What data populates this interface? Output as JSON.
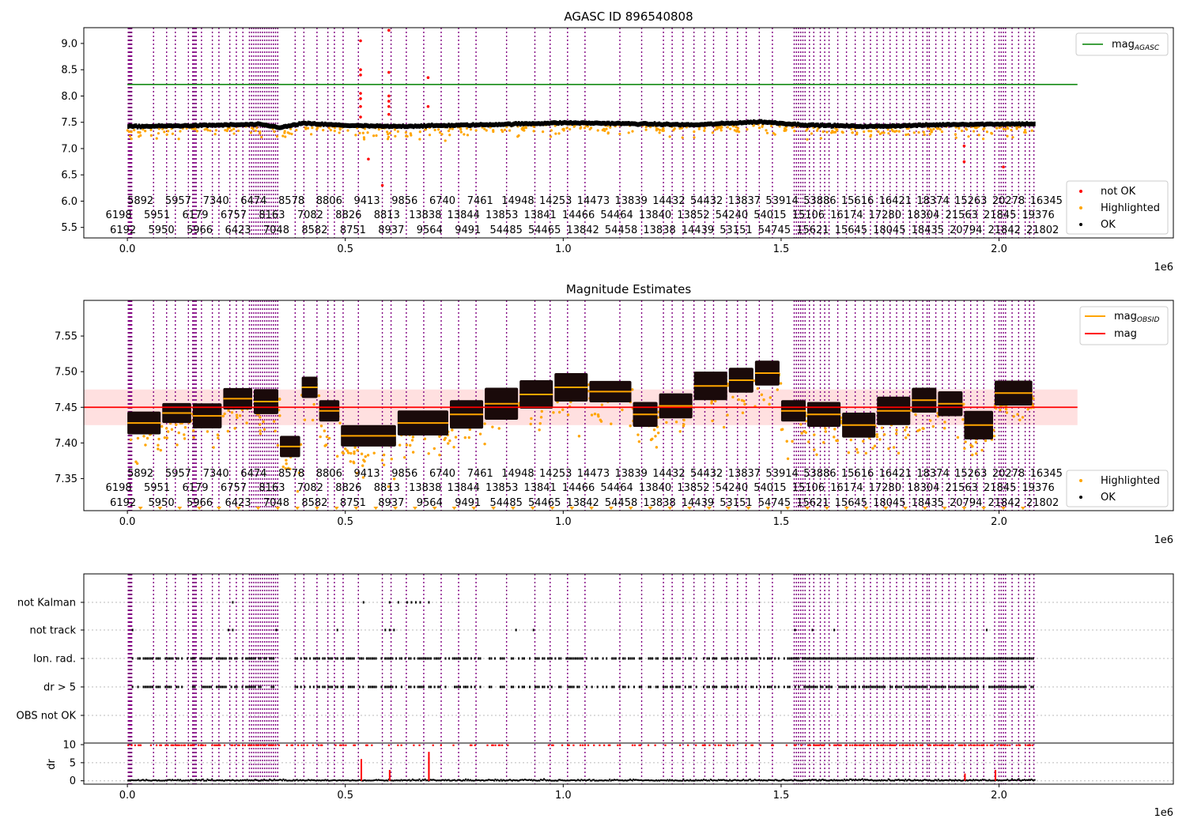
{
  "chart_data": [
    {
      "type": "scatter",
      "title": "AGASC ID 896540808",
      "xlim": [
        -100000,
        2400000
      ],
      "ylim": [
        5.3,
        9.3
      ],
      "x_ticks": [
        "0.0",
        "0.5",
        "1.0",
        "1.5",
        "2.0"
      ],
      "x_multiplier": "1e6",
      "y_ticks": [
        "5.5",
        "6.0",
        "6.5",
        "7.0",
        "7.5",
        "8.0",
        "8.5",
        "9.0"
      ],
      "legend_position": "upper right and lower right",
      "reference_line": {
        "label": "mag_AGASC",
        "value": 8.22,
        "color": "#008000"
      },
      "series": [
        {
          "name": "not OK",
          "color": "#ff0000"
        },
        {
          "name": "Highlighted",
          "color": "#ffa500"
        },
        {
          "name": "OK",
          "color": "#000000"
        }
      ],
      "baseline": {
        "x": [
          0,
          100000,
          300000,
          350000,
          400000,
          500000,
          600000,
          800000,
          1000000,
          1100000,
          1300000,
          1450000,
          1550000,
          1700000,
          1900000,
          2080000
        ],
        "y": [
          7.42,
          7.43,
          7.46,
          7.4,
          7.48,
          7.44,
          7.42,
          7.45,
          7.49,
          7.48,
          7.45,
          7.51,
          7.45,
          7.42,
          7.46,
          7.47
        ]
      },
      "obsid_labels_row1": [
        "5892",
        "5957",
        "7340",
        "6474",
        "8578",
        "8806",
        "9413",
        "9856",
        "6740",
        "7461",
        "14948",
        "14253",
        "14473",
        "13839",
        "14432",
        "54432",
        "13837",
        "53914",
        "53886",
        "15616",
        "16421",
        "18374",
        "15263",
        "20278",
        "16345"
      ],
      "obsid_labels_row2": [
        "6198",
        "5951",
        "6179",
        "6757",
        "8163",
        "7082",
        "8826",
        "8813",
        "13838",
        "13844",
        "13853",
        "13841",
        "14466",
        "54464",
        "13840",
        "13852",
        "54240",
        "54015",
        "15106",
        "16174",
        "17280",
        "18304",
        "21563",
        "21845",
        "19376"
      ],
      "obsid_labels_row3": [
        "6192",
        "5950",
        "5966",
        "6423",
        "7048",
        "8582",
        "8751",
        "8937",
        "9564",
        "9491",
        "54485",
        "54465",
        "13842",
        "54458",
        "13838",
        "14439",
        "53151",
        "54745",
        "15621",
        "15645",
        "18045",
        "18435",
        "20794",
        "21842",
        "21802"
      ]
    },
    {
      "type": "scatter",
      "title": "Magnitude Estimates",
      "xlim": [
        -100000,
        2400000
      ],
      "ylim": [
        7.305,
        7.6
      ],
      "x_ticks": [
        "0.0",
        "0.5",
        "1.0",
        "1.5",
        "2.0"
      ],
      "x_multiplier": "1e6",
      "y_ticks": [
        "7.35",
        "7.40",
        "7.45",
        "7.50",
        "7.55"
      ],
      "reference_line": {
        "label": "mag",
        "value": 7.45,
        "color": "#ff0000",
        "band": [
          7.425,
          7.475
        ]
      },
      "step_line": {
        "label": "mag_OBSID",
        "color": "#ffa500"
      },
      "series": [
        {
          "name": "Highlighted",
          "color": "#ffa500"
        },
        {
          "name": "OK",
          "color": "#000000"
        }
      ],
      "segments": [
        {
          "x0": 0,
          "x1": 80000,
          "y": 7.428,
          "h": 0.032
        },
        {
          "x0": 80000,
          "x1": 150000,
          "y": 7.442,
          "h": 0.028
        },
        {
          "x0": 150000,
          "x1": 220000,
          "y": 7.438,
          "h": 0.035
        },
        {
          "x0": 220000,
          "x1": 290000,
          "y": 7.462,
          "h": 0.03
        },
        {
          "x0": 290000,
          "x1": 350000,
          "y": 7.458,
          "h": 0.035
        },
        {
          "x0": 350000,
          "x1": 400000,
          "y": 7.395,
          "h": 0.03
        },
        {
          "x0": 400000,
          "x1": 440000,
          "y": 7.478,
          "h": 0.03
        },
        {
          "x0": 440000,
          "x1": 490000,
          "y": 7.445,
          "h": 0.03
        },
        {
          "x0": 490000,
          "x1": 620000,
          "y": 7.41,
          "h": 0.03
        },
        {
          "x0": 620000,
          "x1": 740000,
          "y": 7.428,
          "h": 0.035
        },
        {
          "x0": 740000,
          "x1": 820000,
          "y": 7.44,
          "h": 0.04
        },
        {
          "x0": 820000,
          "x1": 900000,
          "y": 7.455,
          "h": 0.045
        },
        {
          "x0": 900000,
          "x1": 980000,
          "y": 7.468,
          "h": 0.04
        },
        {
          "x0": 980000,
          "x1": 1060000,
          "y": 7.478,
          "h": 0.04
        },
        {
          "x0": 1060000,
          "x1": 1160000,
          "y": 7.472,
          "h": 0.03
        },
        {
          "x0": 1160000,
          "x1": 1220000,
          "y": 7.44,
          "h": 0.035
        },
        {
          "x0": 1220000,
          "x1": 1300000,
          "y": 7.452,
          "h": 0.035
        },
        {
          "x0": 1300000,
          "x1": 1380000,
          "y": 7.48,
          "h": 0.04
        },
        {
          "x0": 1380000,
          "x1": 1440000,
          "y": 7.488,
          "h": 0.035
        },
        {
          "x0": 1440000,
          "x1": 1500000,
          "y": 7.498,
          "h": 0.035
        },
        {
          "x0": 1500000,
          "x1": 1560000,
          "y": 7.445,
          "h": 0.03
        },
        {
          "x0": 1560000,
          "x1": 1640000,
          "y": 7.44,
          "h": 0.035
        },
        {
          "x0": 1640000,
          "x1": 1720000,
          "y": 7.425,
          "h": 0.035
        },
        {
          "x0": 1720000,
          "x1": 1800000,
          "y": 7.445,
          "h": 0.04
        },
        {
          "x0": 1800000,
          "x1": 1860000,
          "y": 7.46,
          "h": 0.035
        },
        {
          "x0": 1860000,
          "x1": 1920000,
          "y": 7.455,
          "h": 0.035
        },
        {
          "x0": 1920000,
          "x1": 1990000,
          "y": 7.425,
          "h": 0.04
        },
        {
          "x0": 1990000,
          "x1": 2080000,
          "y": 7.47,
          "h": 0.035
        }
      ]
    },
    {
      "type": "scatter",
      "xlim": [
        -100000,
        2400000
      ],
      "x_ticks": [
        "0.0",
        "0.5",
        "1.0",
        "1.5",
        "2.0"
      ],
      "x_multiplier": "1e6",
      "flag_rows": [
        "not Kalman",
        "not track",
        "Ion. rad.",
        "dr > 5",
        "OBS not OK"
      ],
      "dr_axis": {
        "ylabel": "dr",
        "ylim": [
          -0.5,
          10
        ],
        "ticks": [
          "0",
          "5",
          "10"
        ]
      },
      "series": [
        {
          "name": "dr",
          "color": "#000000"
        },
        {
          "name": "dr capped",
          "color": "#ff0000"
        }
      ]
    }
  ]
}
